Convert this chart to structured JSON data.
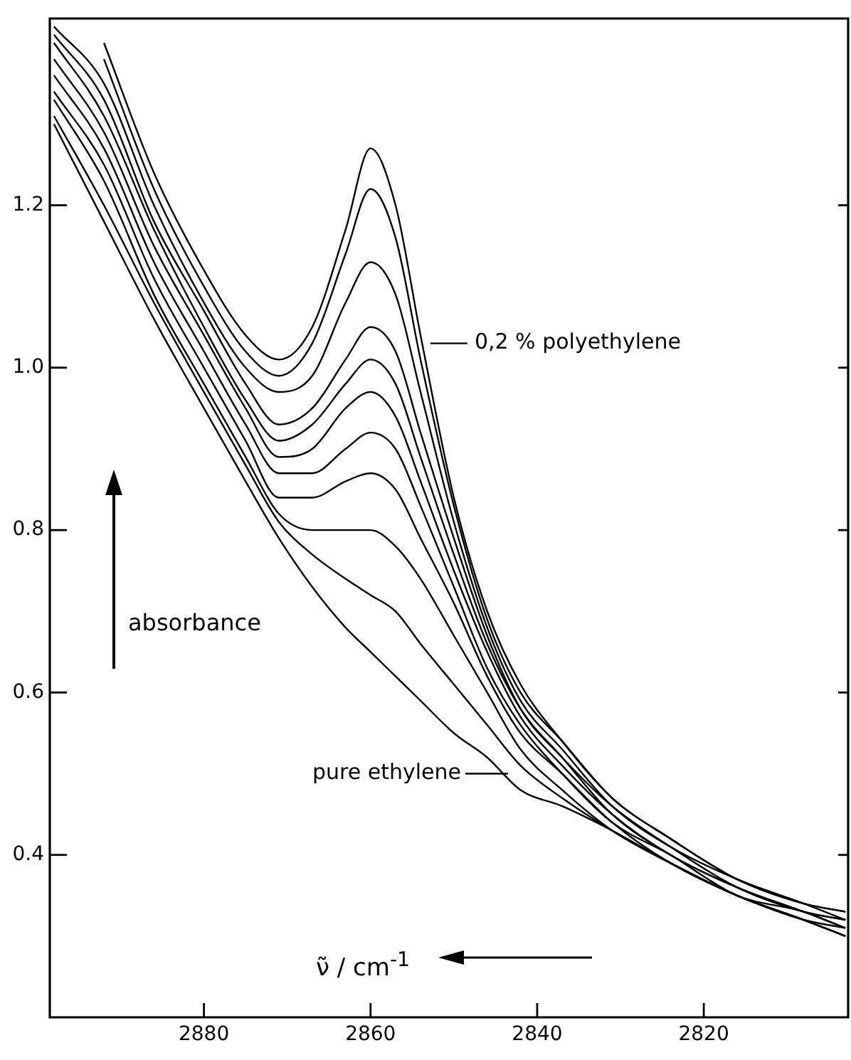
{
  "chart_data": {
    "type": "line",
    "xlabel": "ν̃ / cm$^{-1}$",
    "ylabel": "absorbance",
    "x": [
      2898,
      2892,
      2886,
      2880,
      2875,
      2871,
      2867,
      2863,
      2860,
      2857,
      2854,
      2850,
      2846,
      2842,
      2837,
      2831,
      2824,
      2816,
      2808,
      2803
    ],
    "series": [
      {
        "color": "#000000",
        "values": [
          null,
          1.4,
          1.24,
          1.12,
          1.04,
          1.01,
          1.05,
          1.17,
          1.27,
          1.2,
          1.04,
          0.84,
          0.7,
          0.61,
          0.54,
          0.47,
          0.42,
          0.37,
          0.34,
          0.33
        ]
      },
      {
        "color": "#000000",
        "values": [
          null,
          1.38,
          1.22,
          1.1,
          1.02,
          0.99,
          1.03,
          1.14,
          1.22,
          1.16,
          1.01,
          0.83,
          0.69,
          0.6,
          0.54,
          0.47,
          0.42,
          0.37,
          0.34,
          0.33
        ]
      },
      {
        "color": "#000000",
        "values": [
          1.42,
          1.35,
          1.2,
          1.08,
          1.0,
          0.97,
          0.99,
          1.08,
          1.13,
          1.09,
          0.97,
          0.81,
          0.68,
          0.59,
          0.53,
          0.46,
          0.41,
          0.37,
          0.34,
          0.32
        ]
      },
      {
        "color": "#000000",
        "values": [
          1.41,
          1.33,
          1.18,
          1.07,
          0.98,
          0.93,
          0.95,
          1.01,
          1.05,
          1.02,
          0.92,
          0.79,
          0.67,
          0.58,
          0.52,
          0.46,
          0.41,
          0.36,
          0.33,
          0.32
        ]
      },
      {
        "color": "#000000",
        "values": [
          1.4,
          1.31,
          1.17,
          1.05,
          0.96,
          0.91,
          0.93,
          0.98,
          1.01,
          0.98,
          0.89,
          0.77,
          0.66,
          0.58,
          0.52,
          0.45,
          0.4,
          0.36,
          0.33,
          0.32
        ]
      },
      {
        "color": "#000000",
        "values": [
          1.38,
          1.29,
          1.15,
          1.04,
          0.95,
          0.89,
          0.9,
          0.95,
          0.97,
          0.94,
          0.86,
          0.75,
          0.65,
          0.57,
          0.51,
          0.45,
          0.4,
          0.36,
          0.33,
          0.31
        ]
      },
      {
        "color": "#000000",
        "values": [
          1.36,
          1.27,
          1.13,
          1.02,
          0.93,
          0.87,
          0.87,
          0.9,
          0.92,
          0.9,
          0.83,
          0.73,
          0.63,
          0.56,
          0.5,
          0.44,
          0.4,
          0.35,
          0.33,
          0.31
        ]
      },
      {
        "color": "#000000",
        "values": [
          1.34,
          1.25,
          1.11,
          1.0,
          0.91,
          0.84,
          0.84,
          0.86,
          0.87,
          0.85,
          0.79,
          0.71,
          0.62,
          0.55,
          0.5,
          0.44,
          0.39,
          0.35,
          0.32,
          0.31
        ]
      },
      {
        "color": "#000000",
        "values": [
          1.33,
          1.23,
          1.09,
          0.98,
          0.89,
          0.82,
          0.8,
          0.8,
          0.8,
          0.78,
          0.74,
          0.67,
          0.6,
          0.53,
          0.48,
          0.43,
          0.39,
          0.35,
          0.32,
          0.3
        ]
      },
      {
        "color": "#000000",
        "values": [
          1.31,
          1.2,
          1.08,
          0.97,
          0.88,
          0.81,
          0.77,
          0.74,
          0.72,
          0.7,
          0.66,
          0.61,
          0.56,
          0.51,
          0.47,
          0.43,
          0.39,
          0.35,
          0.32,
          0.3
        ]
      },
      {
        "color": "#000000",
        "values": [
          1.3,
          1.18,
          1.06,
          0.95,
          0.86,
          0.79,
          0.73,
          0.68,
          0.65,
          0.62,
          0.59,
          0.55,
          0.52,
          0.48,
          0.46,
          0.43,
          0.39,
          0.35,
          0.32,
          0.3
        ]
      }
    ],
    "annotations": [
      {
        "text": "0,2 % polyethylene",
        "x": 2853.5,
        "y": 1.03
      },
      {
        "text": "pure ethylene",
        "x": 2843.5,
        "y": 0.5
      }
    ],
    "xlim": [
      2898.5,
      2802.5
    ],
    "xticks": [
      2880,
      2860,
      2840,
      2820
    ],
    "ylim": [
      0.2,
      1.43
    ],
    "yticks": [
      0.4,
      0.6,
      0.8,
      {
        "value": 1,
        "label": "1.0"
      },
      1.2
    ],
    "marker": "none",
    "line_style": "solid",
    "grid": false,
    "legend": false
  }
}
